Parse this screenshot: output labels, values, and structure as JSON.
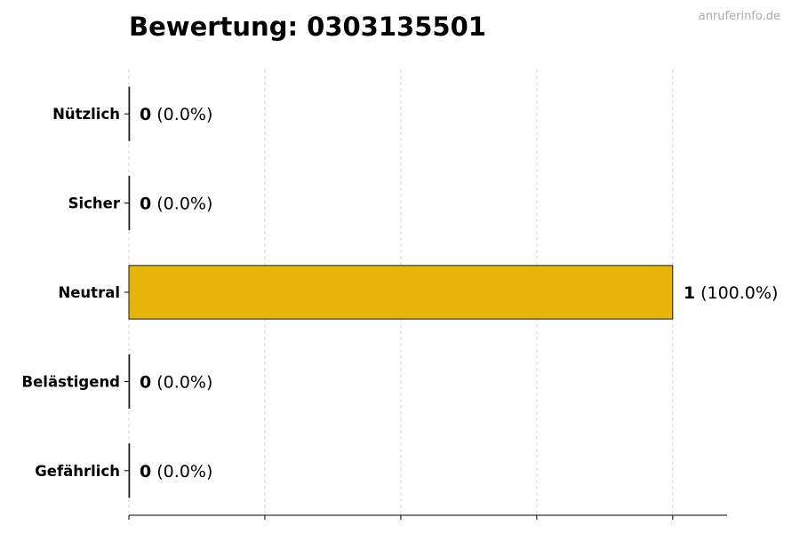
{
  "watermark": "anruferinfo.de",
  "chart_data": {
    "type": "bar",
    "orientation": "horizontal",
    "title": "Bewertung: 0303135501",
    "xlabel": "",
    "ylabel": "",
    "categories": [
      "Nützlich",
      "Sicher",
      "Neutral",
      "Belästigend",
      "Gefährlich"
    ],
    "values": [
      0,
      0,
      1,
      0,
      0
    ],
    "data_labels": [
      {
        "count": "0",
        "percent": "(0.0%)"
      },
      {
        "count": "0",
        "percent": "(0.0%)"
      },
      {
        "count": "1",
        "percent": "(100.0%)"
      },
      {
        "count": "0",
        "percent": "(0.0%)"
      },
      {
        "count": "0",
        "percent": "(0.0%)"
      }
    ],
    "xlim": [
      0,
      1.1
    ],
    "xticks": [
      0,
      0.25,
      0.5,
      0.75,
      1.0
    ],
    "xtick_labels_shown": false,
    "grid": "x, dashed",
    "bar_color": "#E8B40A",
    "edge_color": "#1a1a1a"
  }
}
